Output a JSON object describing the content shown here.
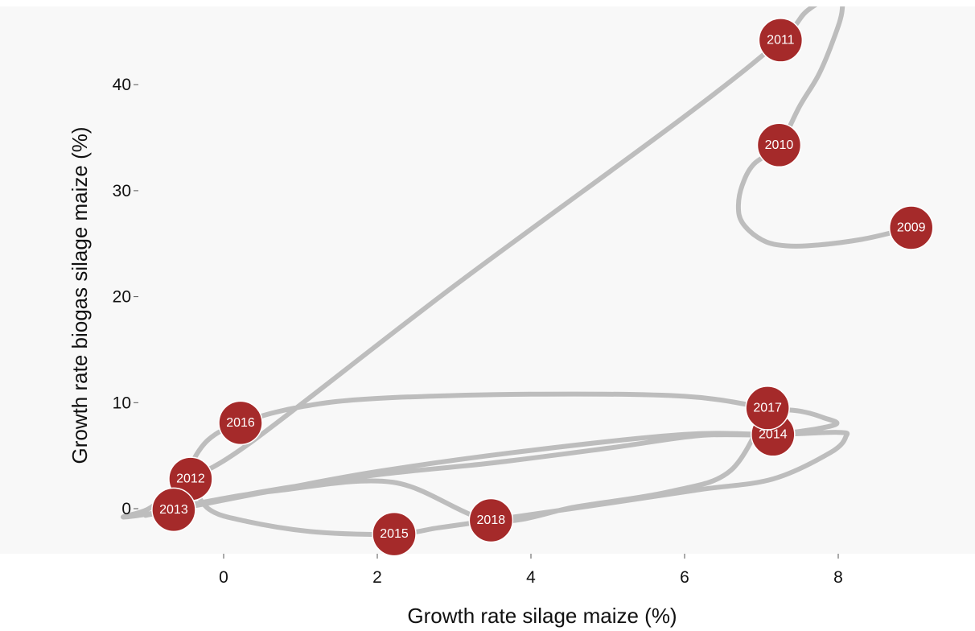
{
  "chart_data": {
    "type": "scatter",
    "title": "",
    "xlabel": "Growth rate silage maize (%)",
    "ylabel": "Growth rate biogas silage maize (%)",
    "xlim": [
      -1.2,
      9.8
    ],
    "ylim": [
      -4.3,
      46.0
    ],
    "x_ticks": [
      0,
      2,
      4,
      6,
      8
    ],
    "y_ticks": [
      0,
      10,
      20,
      30,
      40
    ],
    "grid": false,
    "legend": "none",
    "marker_color": "#a52a2a",
    "line_color": "#bdbdbd",
    "points": [
      {
        "label": "2009",
        "x": 8.95,
        "y": 26.5
      },
      {
        "label": "2010",
        "x": 7.23,
        "y": 34.3
      },
      {
        "label": "2011",
        "x": 7.25,
        "y": 44.2
      },
      {
        "label": "2012",
        "x": -0.43,
        "y": 2.8
      },
      {
        "label": "2013",
        "x": -0.65,
        "y": -0.1
      },
      {
        "label": "2014",
        "x": 7.15,
        "y": 7.0
      },
      {
        "label": "2015",
        "x": 2.22,
        "y": -2.4
      },
      {
        "label": "2016",
        "x": 0.22,
        "y": 8.1
      },
      {
        "label": "2017",
        "x": 7.08,
        "y": 9.5
      },
      {
        "label": "2018",
        "x": 3.48,
        "y": -1.1
      }
    ],
    "connecting_path": [
      [
        8.95,
        26.5
      ],
      [
        8.3,
        25.4
      ],
      [
        7.6,
        24.8
      ],
      [
        7.2,
        24.9
      ],
      [
        6.95,
        25.6
      ],
      [
        6.75,
        27.0
      ],
      [
        6.7,
        28.5
      ],
      [
        6.75,
        30.5
      ],
      [
        6.9,
        32.5
      ],
      [
        7.23,
        34.3
      ],
      [
        7.5,
        38.0
      ],
      [
        7.75,
        41.0
      ],
      [
        7.95,
        44.5
      ],
      [
        8.05,
        47.0
      ],
      [
        8.0,
        48.5
      ],
      [
        7.6,
        47.0
      ],
      [
        7.25,
        44.2
      ],
      [
        6.0,
        37.0
      ],
      [
        3.0,
        21.0
      ],
      [
        0.4,
        6.5
      ],
      [
        -0.43,
        2.8
      ],
      [
        -0.7,
        1.4
      ],
      [
        -1.0,
        -0.1
      ],
      [
        -1.3,
        -0.8
      ],
      [
        -0.65,
        -0.1
      ],
      [
        0.5,
        1.5
      ],
      [
        2.0,
        3.5
      ],
      [
        4.0,
        5.5
      ],
      [
        6.0,
        7.0
      ],
      [
        7.15,
        7.0
      ],
      [
        8.0,
        7.2
      ],
      [
        8.1,
        6.8
      ],
      [
        7.9,
        5.3
      ],
      [
        7.15,
        2.8
      ],
      [
        6.2,
        1.8
      ],
      [
        5.0,
        0.5
      ],
      [
        3.48,
        -1.1
      ],
      [
        2.8,
        -1.8
      ],
      [
        2.22,
        -2.4
      ],
      [
        1.2,
        -2.2
      ],
      [
        0.3,
        -1.2
      ],
      [
        -0.2,
        0.0
      ],
      [
        -0.43,
        2.8
      ],
      [
        -0.45,
        3.8
      ],
      [
        -0.2,
        6.5
      ],
      [
        0.22,
        8.1
      ],
      [
        1.0,
        9.6
      ],
      [
        2.0,
        10.4
      ],
      [
        4.0,
        10.8
      ],
      [
        6.0,
        10.6
      ],
      [
        7.08,
        9.5
      ],
      [
        7.5,
        9.2
      ],
      [
        7.8,
        8.6
      ],
      [
        7.95,
        7.9
      ],
      [
        7.15,
        7.0
      ],
      [
        6.2,
        6.9
      ],
      [
        5.0,
        5.7
      ],
      [
        3.48,
        4.3
      ],
      [
        2.0,
        3.2
      ],
      [
        0.5,
        1.6
      ],
      [
        -0.65,
        -0.1
      ],
      [
        -1.0,
        -0.6
      ],
      [
        -0.2,
        0.7
      ],
      [
        0.7,
        1.7
      ],
      [
        2.2,
        2.5
      ],
      [
        3.48,
        -1.1
      ],
      [
        4.6,
        0.2
      ],
      [
        5.8,
        1.6
      ],
      [
        6.6,
        3.6
      ],
      [
        7.08,
        9.5
      ]
    ]
  }
}
